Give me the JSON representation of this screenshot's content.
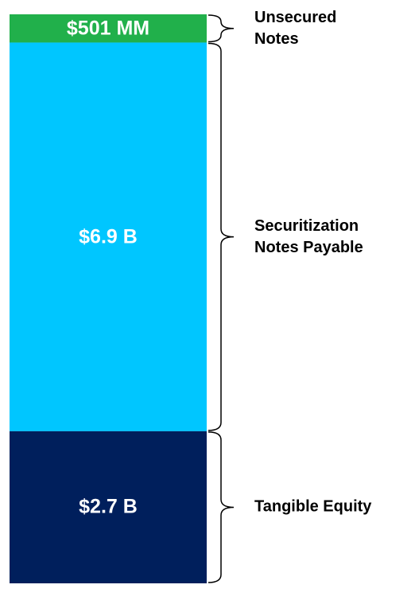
{
  "chart_data": {
    "type": "stacked-column",
    "series": [
      {
        "name": "Unsecured Notes",
        "color": "#21b04b",
        "values": [
          501
        ],
        "value_labels": [
          "$501 MM"
        ]
      },
      {
        "name": "Securitization Notes Payable",
        "color": "#00c6ff",
        "values": [
          6900
        ],
        "value_labels": [
          "$6.9 B"
        ]
      },
      {
        "name": "Tangible Equity",
        "color": "#001f5c",
        "values": [
          2700
        ],
        "value_labels": [
          "$2.7 B"
        ]
      }
    ]
  }
}
